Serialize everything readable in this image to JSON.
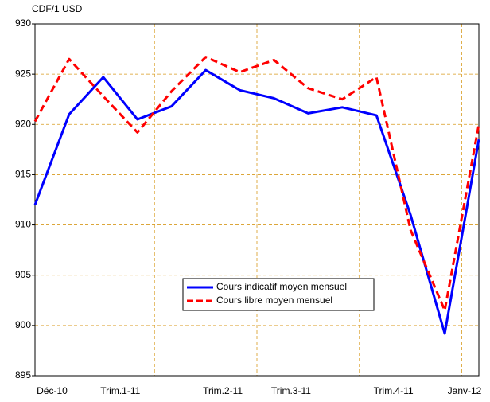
{
  "chart_data": {
    "type": "line",
    "y_label": "CDF/1 USD",
    "categories": [
      "Déc-10",
      null,
      "Trim.1-11",
      null,
      null,
      "Trim.2-11",
      null,
      "Trim.3-11",
      null,
      null,
      "Trim.4-11",
      null,
      null,
      "Janv-12"
    ],
    "series": [
      {
        "name": "Cours indicatif moyen mensuel",
        "color": "#0000ff",
        "dash": false,
        "values": [
          912.0,
          921.0,
          924.7,
          920.5,
          921.8,
          925.4,
          923.4,
          922.6,
          921.1,
          921.7,
          920.9,
          911.0,
          899.2,
          918.5
        ]
      },
      {
        "name": "Cours libre moyen mensuel",
        "color": "#ff0000",
        "dash": true,
        "values": [
          920.3,
          926.5,
          922.8,
          919.2,
          923.3,
          926.7,
          925.2,
          926.4,
          923.6,
          922.5,
          924.7,
          909.5,
          901.5,
          920.0
        ]
      }
    ],
    "ylim": [
      895,
      930
    ],
    "yticks": [
      895,
      900,
      905,
      910,
      915,
      920,
      925,
      930
    ],
    "grid": true
  }
}
